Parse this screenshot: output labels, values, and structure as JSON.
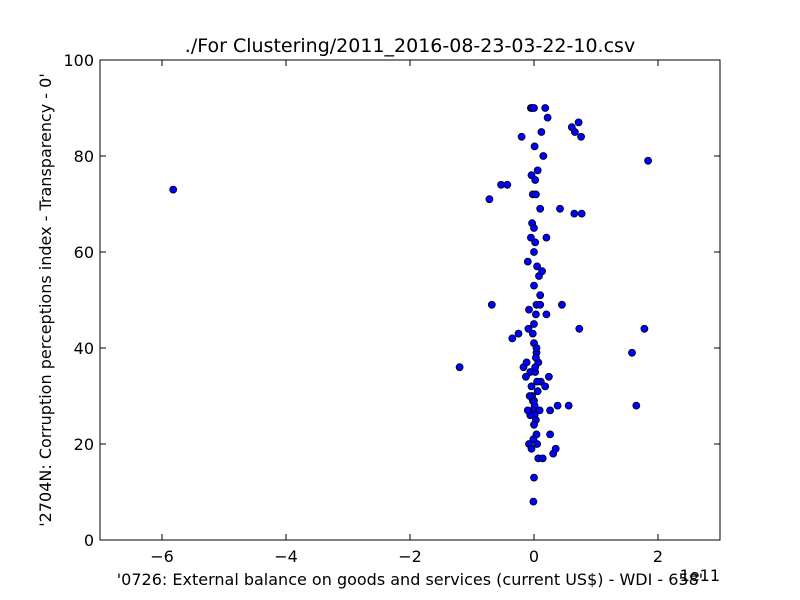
{
  "chart_data": {
    "type": "scatter",
    "title": "./For Clustering/2011_2016-08-23-03-22-10.csv",
    "xlabel": "'0726: External balance on goods and services  (current US$) - WDI - 658'",
    "ylabel": "'2704N: Corruption perceptions index - Transparency - 0'",
    "x_offset_text": "1e11",
    "xlim": [
      -7,
      3
    ],
    "ylim": [
      0,
      100
    ],
    "xticks": [
      -6,
      -4,
      -2,
      0,
      2
    ],
    "xtick_labels": [
      "−6",
      "−4",
      "−2",
      "0",
      "2"
    ],
    "yticks": [
      0,
      20,
      40,
      60,
      80,
      100
    ],
    "ytick_labels": [
      "0",
      "20",
      "40",
      "60",
      "80",
      "100"
    ],
    "grid": false,
    "legend": "none",
    "marker_color": "#0000ff",
    "x": [
      -5.82,
      -1.2,
      -0.72,
      -0.68,
      -0.53,
      -0.43,
      -0.35,
      -0.25,
      -0.2,
      -0.17,
      -0.13,
      -0.1,
      -0.05,
      -0.04,
      -0.03,
      -0.02,
      -0.02,
      -0.01,
      0.0,
      0.01,
      0.01,
      0.02,
      0.03,
      0.04,
      0.05,
      0.06,
      0.1,
      0.12,
      0.15,
      0.18,
      0.2,
      0.22,
      0.26,
      0.31,
      0.38,
      0.42,
      0.45,
      0.56,
      0.61,
      0.65,
      0.66,
      0.72,
      0.73,
      0.76,
      0.77,
      1.58,
      1.65,
      1.78,
      1.84,
      -0.03,
      0.0,
      0.02,
      0.08,
      0.13,
      0.0,
      -0.05,
      0.05,
      0.1,
      -0.08,
      0.03,
      0.0,
      -0.02,
      0.2,
      0.24,
      -0.12,
      0.04,
      0.07,
      0.0,
      0.03,
      -0.06,
      0.02,
      0.11,
      -0.04,
      0.06,
      0.0,
      -0.02,
      0.01,
      -0.06,
      0.03,
      0.0,
      0.18,
      -0.1,
      0.09,
      0.04,
      -0.01,
      -0.08,
      0.07,
      0.14,
      0.0,
      -0.04,
      0.35,
      -0.03,
      0.05,
      0.26,
      -0.07,
      0.02,
      0.0,
      0.1,
      0.04,
      -0.09
    ],
    "y": [
      73,
      36,
      71,
      49,
      74,
      74,
      42,
      43,
      84,
      36,
      34,
      58,
      90,
      76,
      90,
      72,
      29,
      8,
      90,
      82,
      28,
      75,
      72,
      49,
      20,
      77,
      69,
      85,
      80,
      90,
      63,
      88,
      22,
      18,
      28,
      69,
      49,
      28,
      86,
      68,
      85,
      87,
      44,
      84,
      68,
      39,
      28,
      44,
      79,
      66,
      65,
      62,
      55,
      56,
      60,
      63,
      57,
      51,
      48,
      47,
      45,
      43,
      47,
      34,
      37,
      39,
      37,
      41,
      38,
      35,
      35,
      33,
      32,
      31,
      29,
      27,
      26,
      26,
      25,
      24,
      32,
      27,
      27,
      22,
      21,
      20,
      17,
      17,
      13,
      19,
      19,
      30,
      33,
      27,
      30,
      36,
      53,
      49,
      40,
      44
    ]
  }
}
